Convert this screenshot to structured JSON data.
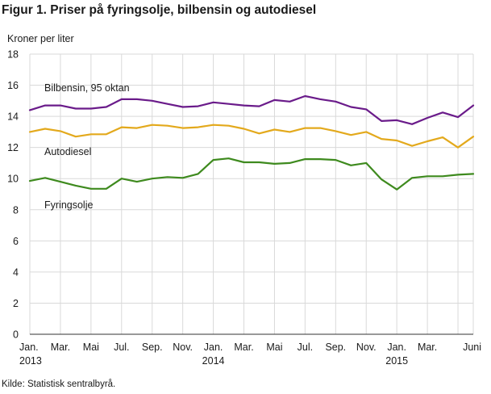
{
  "figure": {
    "title": "Figur 1. Priser på fyringsolje, bilbensin og autodiesel",
    "source": "Kilde: Statistisk sentralbyrå."
  },
  "chart_data": {
    "type": "line",
    "ylabel": "Kroner per liter",
    "xlabel": "",
    "ylim": [
      0,
      18
    ],
    "yticks": [
      0,
      2,
      4,
      6,
      8,
      10,
      12,
      14,
      16,
      18
    ],
    "grid": true,
    "legend": "inline labels",
    "x": [
      "2013-01",
      "2013-02",
      "2013-03",
      "2013-04",
      "2013-05",
      "2013-06",
      "2013-07",
      "2013-08",
      "2013-09",
      "2013-10",
      "2013-11",
      "2013-12",
      "2014-01",
      "2014-02",
      "2014-03",
      "2014-04",
      "2014-05",
      "2014-06",
      "2014-07",
      "2014-08",
      "2014-09",
      "2014-10",
      "2014-11",
      "2014-12",
      "2015-01",
      "2015-02",
      "2015-03",
      "2015-04",
      "2015-05",
      "2015-06"
    ],
    "xtick_labels": [
      {
        "label": "Jan.",
        "year": "2013"
      },
      {
        "label": "Mar.",
        "year": ""
      },
      {
        "label": "Mai",
        "year": ""
      },
      {
        "label": "Jul.",
        "year": ""
      },
      {
        "label": "Sep.",
        "year": ""
      },
      {
        "label": "Nov.",
        "year": ""
      },
      {
        "label": "Jan.",
        "year": "2014"
      },
      {
        "label": "Mar.",
        "year": ""
      },
      {
        "label": "Mai",
        "year": ""
      },
      {
        "label": "Jul.",
        "year": ""
      },
      {
        "label": "Sep.",
        "year": ""
      },
      {
        "label": "Nov.",
        "year": ""
      },
      {
        "label": "Jan.",
        "year": "2015"
      },
      {
        "label": "Mar.",
        "year": ""
      },
      {
        "label": "Juni",
        "year": ""
      }
    ],
    "series": [
      {
        "name": "Bilbensin, 95 oktan",
        "color": "#6a1b8a",
        "values": [
          14.4,
          14.7,
          14.7,
          14.5,
          14.5,
          14.6,
          15.1,
          15.1,
          15.0,
          14.8,
          14.6,
          14.65,
          14.9,
          14.8,
          14.7,
          14.65,
          15.05,
          14.95,
          15.3,
          15.1,
          14.95,
          14.6,
          14.45,
          13.7,
          13.75,
          13.5,
          13.9,
          14.25,
          13.95,
          14.7
        ]
      },
      {
        "name": "Autodiesel",
        "color": "#e3a91c",
        "values": [
          13.0,
          13.2,
          13.05,
          12.7,
          12.85,
          12.85,
          13.3,
          13.25,
          13.45,
          13.4,
          13.25,
          13.3,
          13.45,
          13.4,
          13.2,
          12.9,
          13.15,
          13.0,
          13.25,
          13.25,
          13.05,
          12.8,
          13.0,
          12.55,
          12.45,
          12.1,
          12.4,
          12.65,
          12.0,
          12.7
        ]
      },
      {
        "name": "Fyringsolje",
        "color": "#3e8a1e",
        "values": [
          9.85,
          10.05,
          9.8,
          9.55,
          9.35,
          9.35,
          10.0,
          9.8,
          10.0,
          10.1,
          10.05,
          10.3,
          11.2,
          11.3,
          11.05,
          11.05,
          10.95,
          11.0,
          11.25,
          11.25,
          11.2,
          10.85,
          11.0,
          9.95,
          9.3,
          10.05,
          10.15,
          10.15,
          10.25,
          10.3
        ]
      }
    ]
  }
}
